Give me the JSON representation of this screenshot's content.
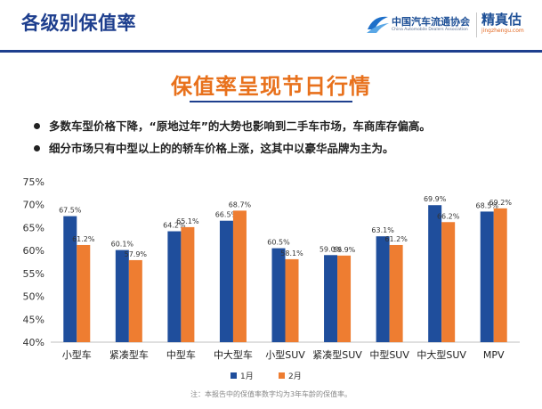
{
  "header": {
    "title": "各级别保值率",
    "org_logo": {
      "name_cn": "中国汽车流通协会",
      "name_en": "China Automobile Dealers Association",
      "icon": "cada-logo-icon"
    },
    "brand_logo": {
      "name": "精真估",
      "url": "jingzhengu.com"
    }
  },
  "section": {
    "heading": "保值率呈现节日行情"
  },
  "bullets": [
    "多数车型价格下降，“原地过年”的大势也影响到二手车市场，车商库存偏高。",
    "细分市场只有中型以上的的轿车价格上涨，这其中以豪华品牌为主为。"
  ],
  "colors": {
    "title_blue": "#1e3f8e",
    "series_jan": "#1f4e9c",
    "series_feb": "#ee7d31",
    "heading_orange": "#e8711c"
  },
  "chart_data": {
    "type": "bar",
    "title": "",
    "xlabel": "",
    "ylabel": "",
    "categories": [
      "小型车",
      "紧凑型车",
      "中型车",
      "中大型车",
      "小型SUV",
      "紧凑型SUV",
      "中型SUV",
      "中大型SUV",
      "MPV"
    ],
    "series": [
      {
        "name": "1月",
        "color": "#1f4e9c",
        "values": [
          67.5,
          60.1,
          64.2,
          66.5,
          60.5,
          59.0,
          63.1,
          69.9,
          68.5
        ],
        "labels": [
          "67.5%",
          "60.1%",
          "64.2%",
          "66.5%",
          "60.5%",
          "59.0%",
          "63.1%",
          "69.9%",
          "68.5%"
        ]
      },
      {
        "name": "2月",
        "color": "#ee7d31",
        "values": [
          61.2,
          57.9,
          65.1,
          68.7,
          58.1,
          58.9,
          61.2,
          66.2,
          69.2
        ],
        "labels": [
          "61.2%",
          "57.9%",
          "65.1%",
          "68.7%",
          "58.1%",
          "58.9%",
          "61.2%",
          "66.2%",
          "69.2%"
        ]
      }
    ],
    "ylim": [
      40,
      75
    ],
    "yticks": [
      40,
      45,
      50,
      55,
      60,
      65,
      70,
      75
    ],
    "ytick_labels": [
      "40%",
      "45%",
      "50%",
      "55%",
      "60%",
      "65%",
      "70%",
      "75%"
    ],
    "grid": false,
    "legend_position": "bottom"
  },
  "footnote": "注：本报告中的保值率数字均为3年车龄的保值率。"
}
